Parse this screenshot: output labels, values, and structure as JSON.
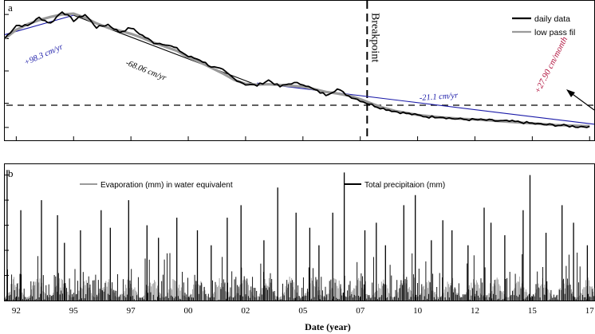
{
  "chart_data": [
    {
      "panel_label": "a",
      "type": "line",
      "legend": {
        "placement": "top-right",
        "entries": [
          {
            "label": "daily data",
            "color": "#000000"
          },
          {
            "label": "low pass fil",
            "color": "#9a9a9a"
          }
        ]
      },
      "x": [
        92.0,
        92.5,
        93.0,
        93.5,
        94.0,
        94.5,
        95.0,
        95.5,
        96.0,
        96.5,
        97.0,
        97.5,
        98.0,
        98.5,
        99.0,
        99.5,
        100.0,
        100.5,
        101.0,
        101.5,
        102.0,
        102.5,
        103.0,
        103.5,
        104.0,
        104.5,
        105.0,
        105.5,
        106.0,
        106.5,
        107.0,
        107.5,
        108.0,
        108.5,
        109.0,
        109.5,
        110.0,
        110.5,
        111.0,
        111.5,
        112.0,
        112.5,
        113.0,
        113.5,
        114.0,
        114.5,
        115.0,
        115.5,
        116.0,
        116.5,
        117.0,
        117.5
      ],
      "series": [
        {
          "name": "daily data",
          "color": "#000000",
          "values": [
            0.21,
            0.53,
            0.52,
            0.72,
            0.58,
            0.88,
            0.65,
            0.8,
            0.48,
            0.55,
            0.36,
            0.47,
            0.28,
            0.1,
            0.07,
            -0.05,
            -0.24,
            -0.32,
            -0.49,
            -0.58,
            -0.79,
            -0.93,
            -0.96,
            -0.83,
            -0.99,
            -0.9,
            -0.92,
            -1.07,
            -1.19,
            -1.05,
            -1.22,
            -1.33,
            -1.44,
            -1.53,
            -1.6,
            -1.65,
            -1.7,
            -1.74,
            -1.73,
            -1.78,
            -1.8,
            -1.81,
            -1.82,
            -1.84,
            -1.85,
            -1.87,
            -1.9,
            -1.93,
            -1.94,
            -1.96,
            -1.98,
            -1.97
          ]
        },
        {
          "name": "low pass fil",
          "color": "#9a9a9a",
          "values": [
            0.2,
            0.42,
            0.56,
            0.66,
            0.74,
            0.8,
            0.82,
            0.72,
            0.58,
            0.47,
            0.4,
            0.32,
            0.22,
            0.1,
            0.0,
            -0.1,
            -0.26,
            -0.38,
            -0.52,
            -0.66,
            -0.82,
            -0.92,
            -0.94,
            -0.93,
            -0.95,
            -0.97,
            -0.99,
            -1.05,
            -1.12,
            -1.16,
            -1.21,
            -1.3,
            -1.41,
            -1.51,
            -1.59,
            -1.64,
            -1.69,
            -1.72,
            -1.75,
            -1.77,
            -1.79,
            -1.8,
            -1.82,
            -1.84,
            -1.86,
            -1.88,
            -1.9,
            -1.92,
            -1.94,
            -1.95,
            -1.96,
            -1.97
          ]
        }
      ],
      "trend_lines": [
        {
          "label": "+98.3 cm/yr",
          "color": "#1a1aa8",
          "x": [
            92.0,
            95.0
          ],
          "y": [
            0.3,
            0.78
          ]
        },
        {
          "label": "-68.06 cm/yr",
          "color": "#000000",
          "x": [
            95.0,
            103.0
          ],
          "y": [
            0.78,
            -0.95
          ]
        },
        {
          "label": "-21.1 cm/yr",
          "color": "#1a1aa8",
          "x": [
            103.0,
            117.7
          ],
          "y": [
            -0.9,
            -1.92
          ]
        },
        {
          "label": "+27.90 cm/month",
          "color": "#b0103c",
          "x": [],
          "y": []
        }
      ],
      "breakpoint": {
        "label": "Breakpoint",
        "x": 107.8
      },
      "reference_level_y": -1.45,
      "ylim": [
        -2.2,
        1.0
      ]
    },
    {
      "panel_label": "b",
      "type": "bar",
      "xlabel": "Date (year)",
      "x_tick_labels": [
        "92",
        "95",
        "97",
        "00",
        "02",
        "05",
        "07",
        "10",
        "12",
        "15",
        "17"
      ],
      "x_tick_positions": [
        92.5,
        95.0,
        97.5,
        100.0,
        102.5,
        105.0,
        107.5,
        110.0,
        112.5,
        115.0,
        117.5
      ],
      "legend": {
        "placement": "top",
        "entries": [
          {
            "label": "Evaporation (mm) in water equivalent",
            "color": "#9a9a9a"
          },
          {
            "label": "Total precipitaion (mm)",
            "color": "#000000"
          }
        ]
      },
      "series": [
        {
          "name": "Total precipitaion (mm)",
          "color": "#000000",
          "peaks": [
            {
              "x": 92.1,
              "y": 52
            },
            {
              "x": 92.7,
              "y": 36
            },
            {
              "x": 93.6,
              "y": 40
            },
            {
              "x": 94.3,
              "y": 34
            },
            {
              "x": 94.6,
              "y": 23
            },
            {
              "x": 95.3,
              "y": 28
            },
            {
              "x": 96.2,
              "y": 36
            },
            {
              "x": 96.6,
              "y": 29
            },
            {
              "x": 97.4,
              "y": 40
            },
            {
              "x": 98.2,
              "y": 30
            },
            {
              "x": 98.7,
              "y": 25
            },
            {
              "x": 99.5,
              "y": 33
            },
            {
              "x": 100.4,
              "y": 28
            },
            {
              "x": 101.0,
              "y": 22
            },
            {
              "x": 101.7,
              "y": 33
            },
            {
              "x": 102.3,
              "y": 38
            },
            {
              "x": 103.3,
              "y": 24
            },
            {
              "x": 103.9,
              "y": 45
            },
            {
              "x": 104.7,
              "y": 35
            },
            {
              "x": 105.3,
              "y": 29
            },
            {
              "x": 105.7,
              "y": 22
            },
            {
              "x": 106.3,
              "y": 35
            },
            {
              "x": 106.8,
              "y": 51
            },
            {
              "x": 107.7,
              "y": 28
            },
            {
              "x": 108.2,
              "y": 31
            },
            {
              "x": 108.6,
              "y": 22
            },
            {
              "x": 109.4,
              "y": 38
            },
            {
              "x": 109.9,
              "y": 42
            },
            {
              "x": 110.6,
              "y": 24
            },
            {
              "x": 111.1,
              "y": 32
            },
            {
              "x": 111.5,
              "y": 28
            },
            {
              "x": 112.2,
              "y": 22
            },
            {
              "x": 112.9,
              "y": 37
            },
            {
              "x": 113.2,
              "y": 31
            },
            {
              "x": 113.8,
              "y": 26
            },
            {
              "x": 114.6,
              "y": 36
            },
            {
              "x": 114.9,
              "y": 50
            },
            {
              "x": 115.6,
              "y": 27
            },
            {
              "x": 116.3,
              "y": 38
            },
            {
              "x": 116.8,
              "y": 31
            },
            {
              "x": 117.4,
              "y": 22
            },
            {
              "x": 117.8,
              "y": 25
            }
          ]
        },
        {
          "name": "Evaporation (mm) in water equivalent",
          "color": "#9a9a9a",
          "seasonal_amplitude": 6,
          "baseline": 4
        }
      ],
      "ylim": [
        0,
        54
      ]
    }
  ]
}
